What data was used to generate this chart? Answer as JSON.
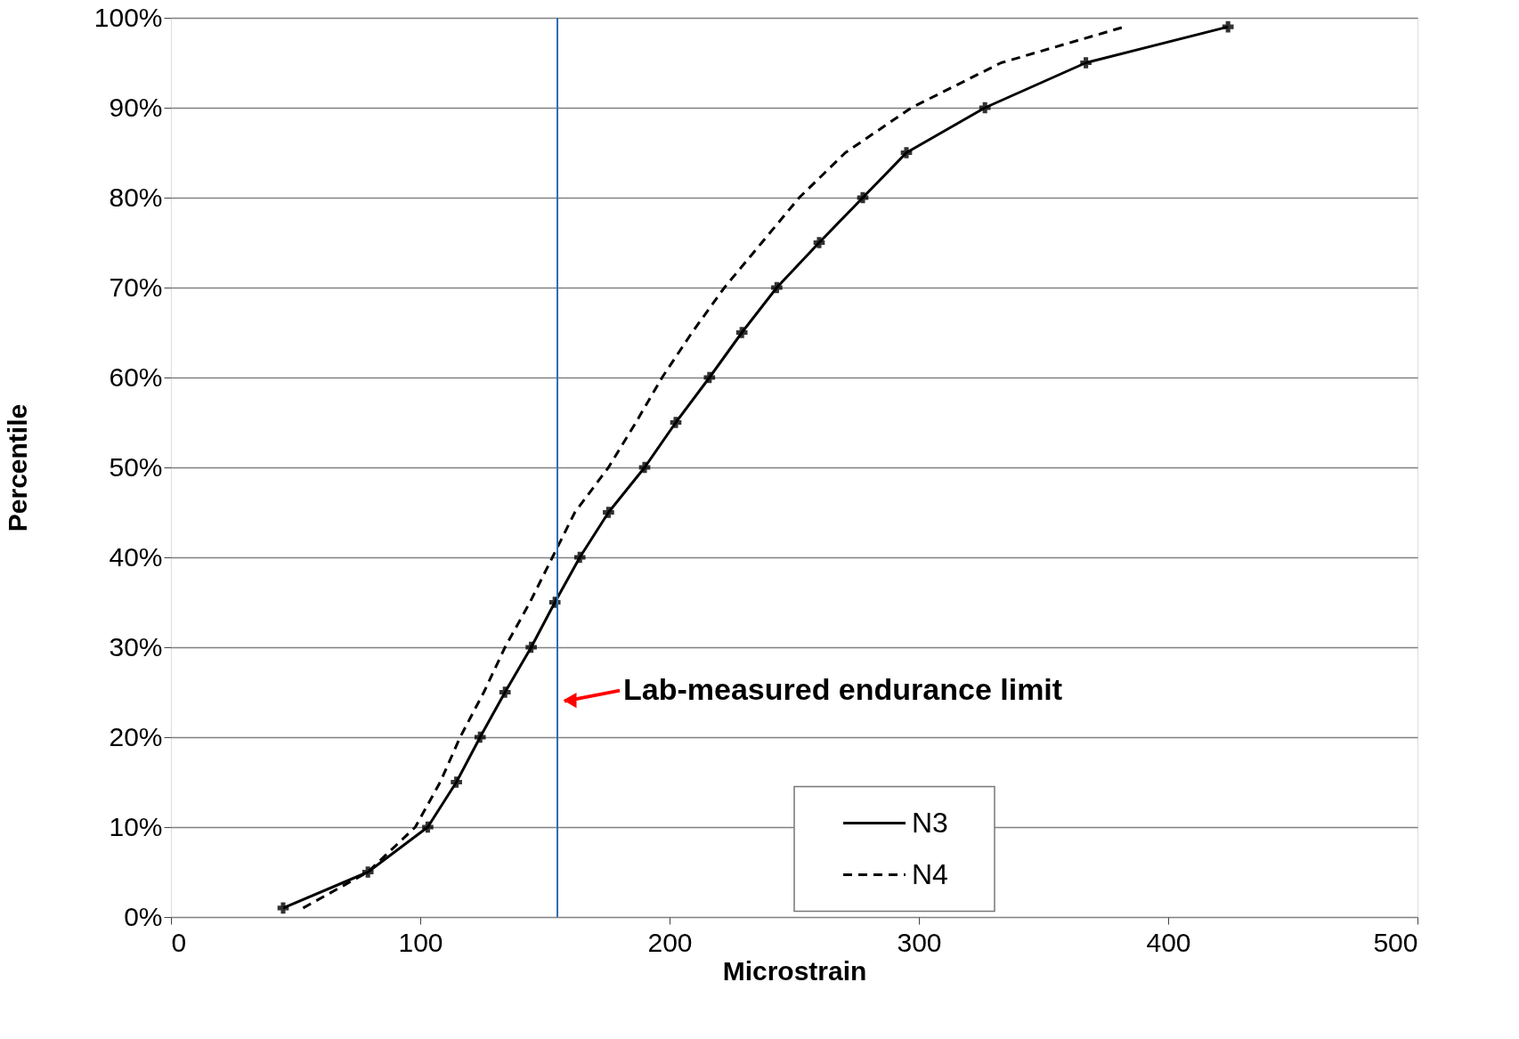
{
  "chart_data": {
    "type": "line",
    "xlabel": "Microstrain",
    "ylabel": "Percentile",
    "xlim": [
      0,
      500
    ],
    "xticks": [
      0,
      100,
      200,
      300,
      400,
      500
    ],
    "ylim": [
      0,
      100
    ],
    "yticks": [
      {
        "value": 0,
        "label": "0%"
      },
      {
        "value": 10,
        "label": "10%"
      },
      {
        "value": 20,
        "label": "20%"
      },
      {
        "value": 30,
        "label": "30%"
      },
      {
        "value": 40,
        "label": "40%"
      },
      {
        "value": 50,
        "label": "50%"
      },
      {
        "value": 60,
        "label": "60%"
      },
      {
        "value": 70,
        "label": "70%"
      },
      {
        "value": 80,
        "label": "80%"
      },
      {
        "value": 90,
        "label": "90%"
      },
      {
        "value": 100,
        "label": "100%"
      }
    ],
    "grid": "y",
    "legend": "bottom right",
    "series": [
      {
        "name": "N3",
        "color": "#000000",
        "line_style": "solid",
        "marker": "cross",
        "x": [
          45,
          79,
          103,
          114.5,
          124,
          134,
          144.5,
          154,
          164,
          175.5,
          190,
          202.5,
          216,
          229,
          243,
          260,
          277.5,
          295,
          326.5,
          367,
          424
        ],
        "values": [
          1,
          5,
          10,
          15,
          20,
          25,
          30,
          35,
          40,
          45,
          50,
          55,
          60,
          65,
          70,
          75,
          80,
          85,
          90,
          95,
          99
        ]
      },
      {
        "name": "N4",
        "color": "#000000",
        "line_style": "dashed",
        "marker": "none",
        "x": [
          53,
          79,
          98,
          108,
          116,
          125.5,
          134,
          144,
          153,
          162,
          175.5,
          186.5,
          197,
          209,
          222,
          237,
          252,
          270.5,
          297,
          333,
          382.5
        ],
        "values": [
          1,
          5,
          10,
          15,
          20,
          25,
          30,
          35,
          40,
          45,
          50,
          55,
          60,
          65,
          70,
          75,
          80,
          85,
          90,
          95,
          99
        ]
      }
    ],
    "ref_lines": [
      {
        "axis": "x",
        "value": 155,
        "color": "#2e6db4"
      }
    ],
    "annotations": [
      {
        "text": "Lab-measured endurance limit",
        "x": 155,
        "y": 24
      }
    ]
  }
}
